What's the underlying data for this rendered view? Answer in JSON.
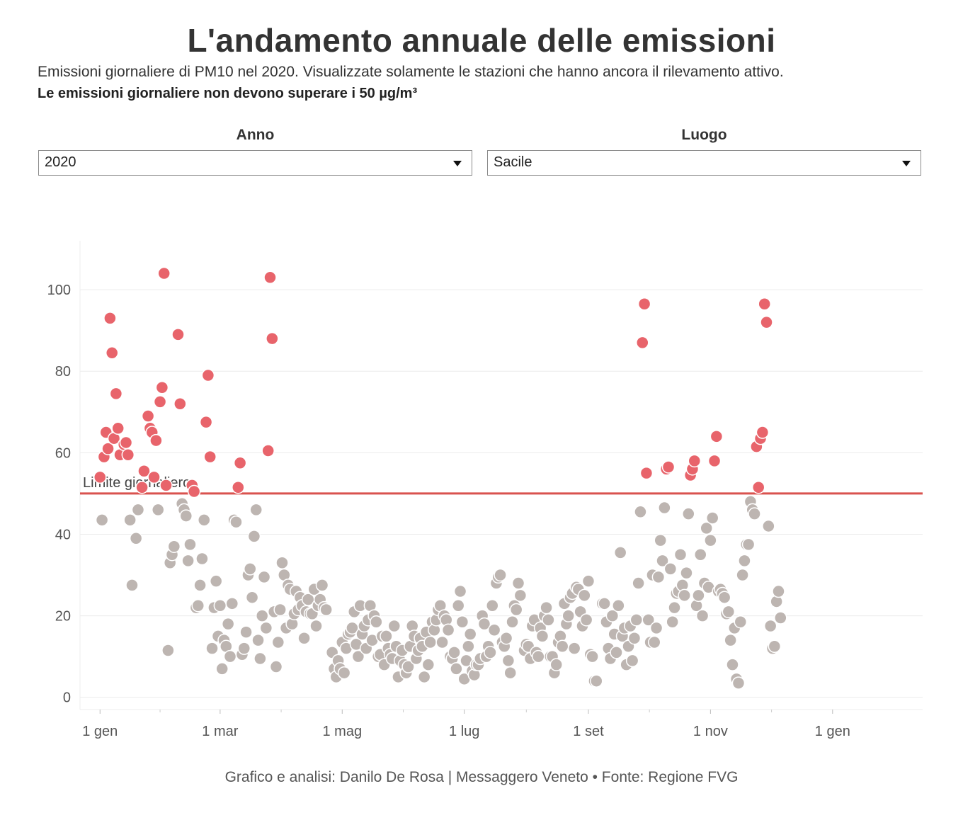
{
  "header": {
    "title": "L'andamento annuale delle emissioni",
    "subtitle": "Emissioni giornaliere di PM10 nel 2020. Visualizzate solamente le stazioni che hanno ancora il rilevamento attivo.",
    "subtitle_bold": "Le emissioni giornaliere non devono superare i 50 µg/m³"
  },
  "controls": {
    "year_label": "Anno",
    "year_value": "2020",
    "place_label": "Luogo",
    "place_value": "Sacile"
  },
  "footer": "Grafico e analisi: Danilo De Rosa | Messaggero Veneto • Fonte: Regione FVG",
  "colors": {
    "above_limit": "#e8646b",
    "below_limit": "#bdb5b1",
    "limit_line": "#d9534f"
  },
  "chart_data": {
    "type": "scatter",
    "title": "Emissioni giornaliere di PM10",
    "xlabel": "",
    "ylabel": "",
    "xlim": [
      -10,
      411
    ],
    "ylim": [
      -3,
      112
    ],
    "x_unit": "giorni dal 1 gen 2020",
    "x_ticks": [
      {
        "value": 0,
        "label": "1 gen"
      },
      {
        "value": 60,
        "label": "1 mar"
      },
      {
        "value": 121,
        "label": "1 mag"
      },
      {
        "value": 182,
        "label": "1 lug"
      },
      {
        "value": 244,
        "label": "1 set"
      },
      {
        "value": 305,
        "label": "1 nov"
      },
      {
        "value": 366,
        "label": "1 gen"
      }
    ],
    "y_ticks": [
      0,
      20,
      40,
      60,
      80,
      100
    ],
    "threshold": {
      "value": 50,
      "label": "Limite giornaliero"
    },
    "points": [
      [
        0,
        54
      ],
      [
        1,
        43.5
      ],
      [
        2,
        59
      ],
      [
        3,
        65
      ],
      [
        4,
        61
      ],
      [
        5,
        93
      ],
      [
        6,
        84.5
      ],
      [
        7,
        63.5
      ],
      [
        8,
        74.5
      ],
      [
        9,
        66
      ],
      [
        10,
        59.5
      ],
      [
        12,
        62
      ],
      [
        13,
        62.5
      ],
      [
        14,
        59.5
      ],
      [
        15,
        43.5
      ],
      [
        16,
        27.5
      ],
      [
        18,
        39
      ],
      [
        19,
        46
      ],
      [
        21,
        51.5
      ],
      [
        22,
        55.5
      ],
      [
        24,
        69
      ],
      [
        25,
        66
      ],
      [
        26,
        65
      ],
      [
        27,
        54
      ],
      [
        28,
        63
      ],
      [
        29,
        46
      ],
      [
        30,
        72.5
      ],
      [
        31,
        76
      ],
      [
        32,
        104
      ],
      [
        33,
        52
      ],
      [
        34,
        11.5
      ],
      [
        35,
        33
      ],
      [
        36,
        35
      ],
      [
        37,
        37
      ],
      [
        39,
        89
      ],
      [
        40,
        72
      ],
      [
        41,
        47.5
      ],
      [
        42,
        46
      ],
      [
        43,
        44.5
      ],
      [
        44,
        33.5
      ],
      [
        45,
        37.5
      ],
      [
        46,
        52
      ],
      [
        47,
        50.5
      ],
      [
        48,
        22
      ],
      [
        49,
        22.5
      ],
      [
        50,
        27.5
      ],
      [
        51,
        34
      ],
      [
        52,
        43.5
      ],
      [
        53,
        67.5
      ],
      [
        54,
        79
      ],
      [
        55,
        59
      ],
      [
        56,
        12
      ],
      [
        57,
        22
      ],
      [
        58,
        28.5
      ],
      [
        59,
        15
      ],
      [
        60,
        22.5
      ],
      [
        61,
        7
      ],
      [
        62,
        14
      ],
      [
        63,
        12.5
      ],
      [
        64,
        18
      ],
      [
        65,
        10
      ],
      [
        66,
        23
      ],
      [
        67,
        43.5
      ],
      [
        68,
        43
      ],
      [
        69,
        51.5
      ],
      [
        70,
        57.5
      ],
      [
        71,
        10.5
      ],
      [
        72,
        12
      ],
      [
        73,
        16
      ],
      [
        74,
        30
      ],
      [
        75,
        31.5
      ],
      [
        76,
        24.5
      ],
      [
        77,
        39.5
      ],
      [
        78,
        46
      ],
      [
        79,
        14
      ],
      [
        80,
        9.5
      ],
      [
        81,
        20
      ],
      [
        82,
        29.5
      ],
      [
        83,
        17
      ],
      [
        84,
        60.5
      ],
      [
        85,
        103
      ],
      [
        86,
        88
      ],
      [
        87,
        21
      ],
      [
        88,
        7.5
      ],
      [
        89,
        13.5
      ],
      [
        90,
        21.5
      ],
      [
        91,
        33
      ],
      [
        92,
        30
      ],
      [
        93,
        17
      ],
      [
        94,
        27.5
      ],
      [
        95,
        26.5
      ],
      [
        96,
        18
      ],
      [
        97,
        20.5
      ],
      [
        98,
        26
      ],
      [
        99,
        21.5
      ],
      [
        100,
        24.5
      ],
      [
        101,
        22.5
      ],
      [
        102,
        14.5
      ],
      [
        103,
        21
      ],
      [
        104,
        24
      ],
      [
        105,
        20.5
      ],
      [
        106,
        20.5
      ],
      [
        107,
        26.5
      ],
      [
        108,
        17.5
      ],
      [
        109,
        22.5
      ],
      [
        110,
        24
      ],
      [
        111,
        27.5
      ],
      [
        112,
        22
      ],
      [
        113,
        21.5
      ],
      [
        116,
        11
      ],
      [
        117,
        7
      ],
      [
        118,
        5
      ],
      [
        119,
        9
      ],
      [
        120,
        7
      ],
      [
        121,
        13.5
      ],
      [
        122,
        6
      ],
      [
        123,
        12
      ],
      [
        124,
        15.5
      ],
      [
        125,
        16
      ],
      [
        126,
        17
      ],
      [
        127,
        21
      ],
      [
        128,
        13
      ],
      [
        129,
        10
      ],
      [
        130,
        22.5
      ],
      [
        131,
        15.5
      ],
      [
        132,
        17.5
      ],
      [
        133,
        12
      ],
      [
        134,
        19
      ],
      [
        135,
        22.5
      ],
      [
        136,
        14
      ],
      [
        137,
        20
      ],
      [
        138,
        18.5
      ],
      [
        139,
        10
      ],
      [
        140,
        10.5
      ],
      [
        141,
        15
      ],
      [
        142,
        8
      ],
      [
        143,
        15
      ],
      [
        144,
        12
      ],
      [
        145,
        10.5
      ],
      [
        146,
        9.5
      ],
      [
        147,
        17.5
      ],
      [
        148,
        12.5
      ],
      [
        149,
        5
      ],
      [
        150,
        9
      ],
      [
        151,
        11.5
      ],
      [
        152,
        8
      ],
      [
        153,
        6
      ],
      [
        154,
        7.5
      ],
      [
        155,
        12.5
      ],
      [
        156,
        17.5
      ],
      [
        157,
        15
      ],
      [
        158,
        9.5
      ],
      [
        159,
        11.5
      ],
      [
        160,
        14.5
      ],
      [
        161,
        12.5
      ],
      [
        162,
        5
      ],
      [
        163,
        16
      ],
      [
        164,
        8
      ],
      [
        165,
        13.5
      ],
      [
        166,
        18.5
      ],
      [
        167,
        16.5
      ],
      [
        168,
        19
      ],
      [
        169,
        21.5
      ],
      [
        170,
        22.5
      ],
      [
        171,
        13.5
      ],
      [
        172,
        20
      ],
      [
        173,
        19
      ],
      [
        174,
        16.5
      ],
      [
        175,
        10
      ],
      [
        176,
        9.5
      ],
      [
        177,
        11
      ],
      [
        178,
        7
      ],
      [
        179,
        22.5
      ],
      [
        180,
        26
      ],
      [
        181,
        18.5
      ],
      [
        182,
        4.5
      ],
      [
        183,
        9
      ],
      [
        184,
        12.5
      ],
      [
        185,
        15.5
      ],
      [
        186,
        6.5
      ],
      [
        187,
        5.5
      ],
      [
        188,
        8
      ],
      [
        189,
        8
      ],
      [
        190,
        9.5
      ],
      [
        191,
        20
      ],
      [
        192,
        18
      ],
      [
        193,
        10
      ],
      [
        194,
        12.5
      ],
      [
        195,
        11
      ],
      [
        196,
        22.5
      ],
      [
        197,
        16.5
      ],
      [
        198,
        28
      ],
      [
        199,
        29.5
      ],
      [
        200,
        30
      ],
      [
        201,
        13.5
      ],
      [
        202,
        12.5
      ],
      [
        203,
        14.5
      ],
      [
        204,
        9
      ],
      [
        205,
        6
      ],
      [
        206,
        18.5
      ],
      [
        207,
        22.5
      ],
      [
        208,
        21.5
      ],
      [
        209,
        28
      ],
      [
        210,
        25
      ],
      [
        212,
        11.5
      ],
      [
        213,
        13
      ],
      [
        214,
        12.5
      ],
      [
        215,
        9.5
      ],
      [
        216,
        17.5
      ],
      [
        217,
        19
      ],
      [
        218,
        11
      ],
      [
        219,
        10
      ],
      [
        220,
        17
      ],
      [
        221,
        15
      ],
      [
        222,
        20
      ],
      [
        223,
        22
      ],
      [
        224,
        19
      ],
      [
        225,
        10
      ],
      [
        226,
        10
      ],
      [
        227,
        6
      ],
      [
        228,
        8
      ],
      [
        229,
        13.5
      ],
      [
        230,
        15
      ],
      [
        231,
        12.5
      ],
      [
        232,
        23
      ],
      [
        233,
        18
      ],
      [
        234,
        20
      ],
      [
        235,
        24.5
      ],
      [
        236,
        25.5
      ],
      [
        237,
        12
      ],
      [
        238,
        27
      ],
      [
        239,
        26.5
      ],
      [
        240,
        21
      ],
      [
        241,
        17.5
      ],
      [
        242,
        25
      ],
      [
        243,
        19
      ],
      [
        244,
        28.5
      ],
      [
        245,
        10.5
      ],
      [
        246,
        10
      ],
      [
        247,
        4
      ],
      [
        248,
        4
      ],
      [
        251,
        23
      ],
      [
        252,
        23
      ],
      [
        253,
        18.5
      ],
      [
        254,
        12
      ],
      [
        255,
        9.5
      ],
      [
        256,
        20
      ],
      [
        257,
        15.5
      ],
      [
        258,
        11
      ],
      [
        259,
        22.5
      ],
      [
        260,
        35.5
      ],
      [
        261,
        15
      ],
      [
        262,
        17
      ],
      [
        263,
        8
      ],
      [
        264,
        12.5
      ],
      [
        265,
        17.5
      ],
      [
        266,
        9
      ],
      [
        267,
        14.5
      ],
      [
        268,
        19
      ],
      [
        269,
        28
      ],
      [
        270,
        45.5
      ],
      [
        271,
        87
      ],
      [
        272,
        96.5
      ],
      [
        273,
        55
      ],
      [
        274,
        19
      ],
      [
        275,
        13.5
      ],
      [
        276,
        30
      ],
      [
        277,
        13.5
      ],
      [
        278,
        17
      ],
      [
        279,
        29.5
      ],
      [
        280,
        38.5
      ],
      [
        281,
        33.5
      ],
      [
        282,
        46.5
      ],
      [
        283,
        56
      ],
      [
        284,
        56.5
      ],
      [
        285,
        31.5
      ],
      [
        286,
        18.5
      ],
      [
        287,
        22
      ],
      [
        288,
        25.5
      ],
      [
        289,
        26
      ],
      [
        290,
        35
      ],
      [
        291,
        27.5
      ],
      [
        292,
        25
      ],
      [
        293,
        30.5
      ],
      [
        294,
        45
      ],
      [
        295,
        54.5
      ],
      [
        296,
        56
      ],
      [
        297,
        58
      ],
      [
        298,
        22.5
      ],
      [
        299,
        25
      ],
      [
        300,
        35
      ],
      [
        301,
        20
      ],
      [
        302,
        28
      ],
      [
        303,
        41.5
      ],
      [
        304,
        27
      ],
      [
        305,
        38.5
      ],
      [
        306,
        44
      ],
      [
        307,
        58
      ],
      [
        308,
        64
      ],
      [
        309,
        26
      ],
      [
        310,
        26.5
      ],
      [
        311,
        25.5
      ],
      [
        312,
        24.5
      ],
      [
        313,
        20.5
      ],
      [
        314,
        21
      ],
      [
        315,
        14
      ],
      [
        316,
        8
      ],
      [
        317,
        17
      ],
      [
        318,
        4.5
      ],
      [
        319,
        3.5
      ],
      [
        320,
        18.5
      ],
      [
        321,
        30
      ],
      [
        322,
        33.5
      ],
      [
        323,
        37.5
      ],
      [
        324,
        37.5
      ],
      [
        325,
        48
      ],
      [
        326,
        46
      ],
      [
        327,
        45
      ],
      [
        328,
        61.5
      ],
      [
        329,
        51.5
      ],
      [
        330,
        63.5
      ],
      [
        331,
        65
      ],
      [
        332,
        96.5
      ],
      [
        333,
        92
      ],
      [
        334,
        42
      ],
      [
        335,
        17.5
      ],
      [
        336,
        12
      ],
      [
        337,
        12.5
      ],
      [
        338,
        23.5
      ],
      [
        339,
        26
      ],
      [
        340,
        19.5
      ]
    ]
  }
}
